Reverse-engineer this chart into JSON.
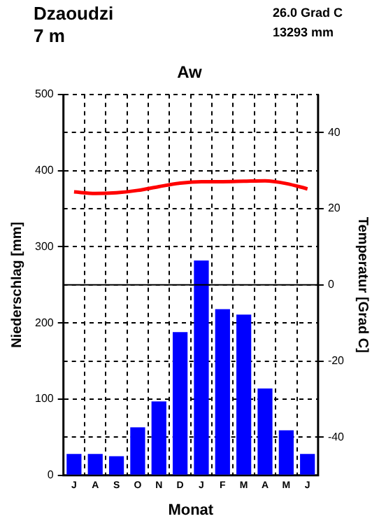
{
  "chart_data": {
    "type": "bar",
    "title": "Aw",
    "xlabel": "Monat",
    "ylabel": "Niederschlag [mm]",
    "y2label": "Temperatur [Grad C]",
    "annotations": [
      "Dzaoudzi",
      "7 m",
      "26.0 Grad C",
      "13293 mm"
    ],
    "categories": [
      "J",
      "A",
      "S",
      "O",
      "N",
      "D",
      "J",
      "F",
      "M",
      "A",
      "M",
      "J"
    ],
    "series": [
      {
        "color": "#0000ff",
        "values": [
          28,
          28,
          25,
          63,
          97,
          188,
          282,
          218,
          211,
          114,
          59,
          28
        ]
      },
      {
        "type": "line",
        "axis": "y2",
        "color": "#ff0000",
        "values": [
          24.4,
          24.0,
          24.2,
          24.8,
          25.8,
          26.7,
          27.1,
          27.1,
          27.2,
          27.3,
          26.6,
          25.2
        ]
      }
    ],
    "ylim": [
      0,
      500
    ],
    "yticks": [
      0,
      100,
      200,
      300,
      400,
      500
    ],
    "y2lim": [
      -50,
      50
    ],
    "y2ticks": [
      -40,
      -20,
      0,
      20,
      40
    ],
    "ref_lines": [
      {
        "axis": "y2",
        "value": 0,
        "color": "#000000",
        "line_style": "solid"
      }
    ],
    "grid": true,
    "marker": "none",
    "line_style": "solid"
  }
}
